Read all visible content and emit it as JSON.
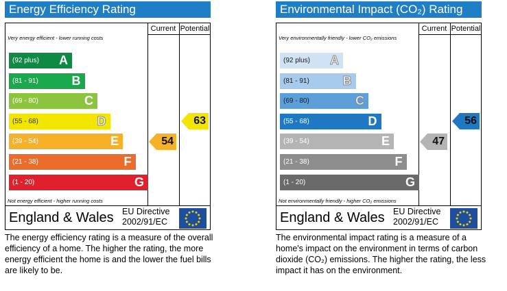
{
  "energy": {
    "title": "Energy Efficiency Rating",
    "col_current": "Current",
    "col_potential": "Potential",
    "top_text": "Very energy efficient - lower running costs",
    "bottom_text": "Not energy efficient - higher running costs",
    "bands": [
      {
        "range": "(92 plus)",
        "letter": "A",
        "color": "#0e8a44"
      },
      {
        "range": "(81 - 91)",
        "letter": "B",
        "color": "#1aa84c"
      },
      {
        "range": "(69 - 80)",
        "letter": "C",
        "color": "#8dc43f"
      },
      {
        "range": "(55 - 68)",
        "letter": "D",
        "color": "#f2e600"
      },
      {
        "range": "(39 - 54)",
        "letter": "E",
        "color": "#f6b129"
      },
      {
        "range": "(21 - 38)",
        "letter": "F",
        "color": "#ec6d2b"
      },
      {
        "range": "(1 - 20)",
        "letter": "G",
        "color": "#e1202e"
      }
    ],
    "current": {
      "value": "54",
      "band": "E",
      "color": "#f6b129"
    },
    "potential": {
      "value": "63",
      "band": "D",
      "color": "#f2e600"
    },
    "country": "England & Wales",
    "directive_line1": "EU Directive",
    "directive_line2": "2002/91/EC",
    "description": "The energy efficiency rating is a measure of the overall efficiency of a home. The higher the rating, the more energy efficient the home is and the lower the fuel bills are likely to be."
  },
  "environment": {
    "title": "Environmental Impact (CO₂) Rating",
    "col_current": "Current",
    "col_potential": "Potential",
    "top_text": "Very environmentally friendly - lower CO₂ emissions",
    "bottom_text": "Not environmentally friendly - higher CO₂ emissions",
    "bands": [
      {
        "range": "(92 plus)",
        "letter": "A",
        "color": "#cfe3f5"
      },
      {
        "range": "(81 - 91)",
        "letter": "B",
        "color": "#a7cbec"
      },
      {
        "range": "(69 - 80)",
        "letter": "C",
        "color": "#5e9fd9"
      },
      {
        "range": "(55 - 68)",
        "letter": "D",
        "color": "#1f78c1"
      },
      {
        "range": "(39 - 54)",
        "letter": "E",
        "color": "#b4b4b4"
      },
      {
        "range": "(21 - 38)",
        "letter": "F",
        "color": "#8d8d8d"
      },
      {
        "range": "(1 - 20)",
        "letter": "G",
        "color": "#6a6a6a"
      }
    ],
    "current": {
      "value": "47",
      "band": "E",
      "color": "#b4b4b4"
    },
    "potential": {
      "value": "56",
      "band": "D",
      "color": "#1f78c1"
    },
    "country": "England & Wales",
    "directive_line1": "EU Directive",
    "directive_line2": "2002/91/EC",
    "description": "The environmental impact rating is a measure of a home's impact on the environment in terms of carbon dioxide (CO₂) emissions. The higher the rating, the less impact it has on the environment."
  },
  "chart_data": [
    {
      "type": "bar",
      "title": "Energy Efficiency Rating",
      "categories": [
        "A",
        "B",
        "C",
        "D",
        "E",
        "F",
        "G"
      ],
      "ranges": [
        "92 plus",
        "81 - 91",
        "69 - 80",
        "55 - 68",
        "39 - 54",
        "21 - 38",
        "1 - 20"
      ],
      "current": 54,
      "potential": 63
    },
    {
      "type": "bar",
      "title": "Environmental Impact (CO₂) Rating",
      "categories": [
        "A",
        "B",
        "C",
        "D",
        "E",
        "F",
        "G"
      ],
      "ranges": [
        "92 plus",
        "81 - 91",
        "69 - 80",
        "55 - 68",
        "39 - 54",
        "21 - 38",
        "1 - 20"
      ],
      "current": 47,
      "potential": 56
    }
  ]
}
